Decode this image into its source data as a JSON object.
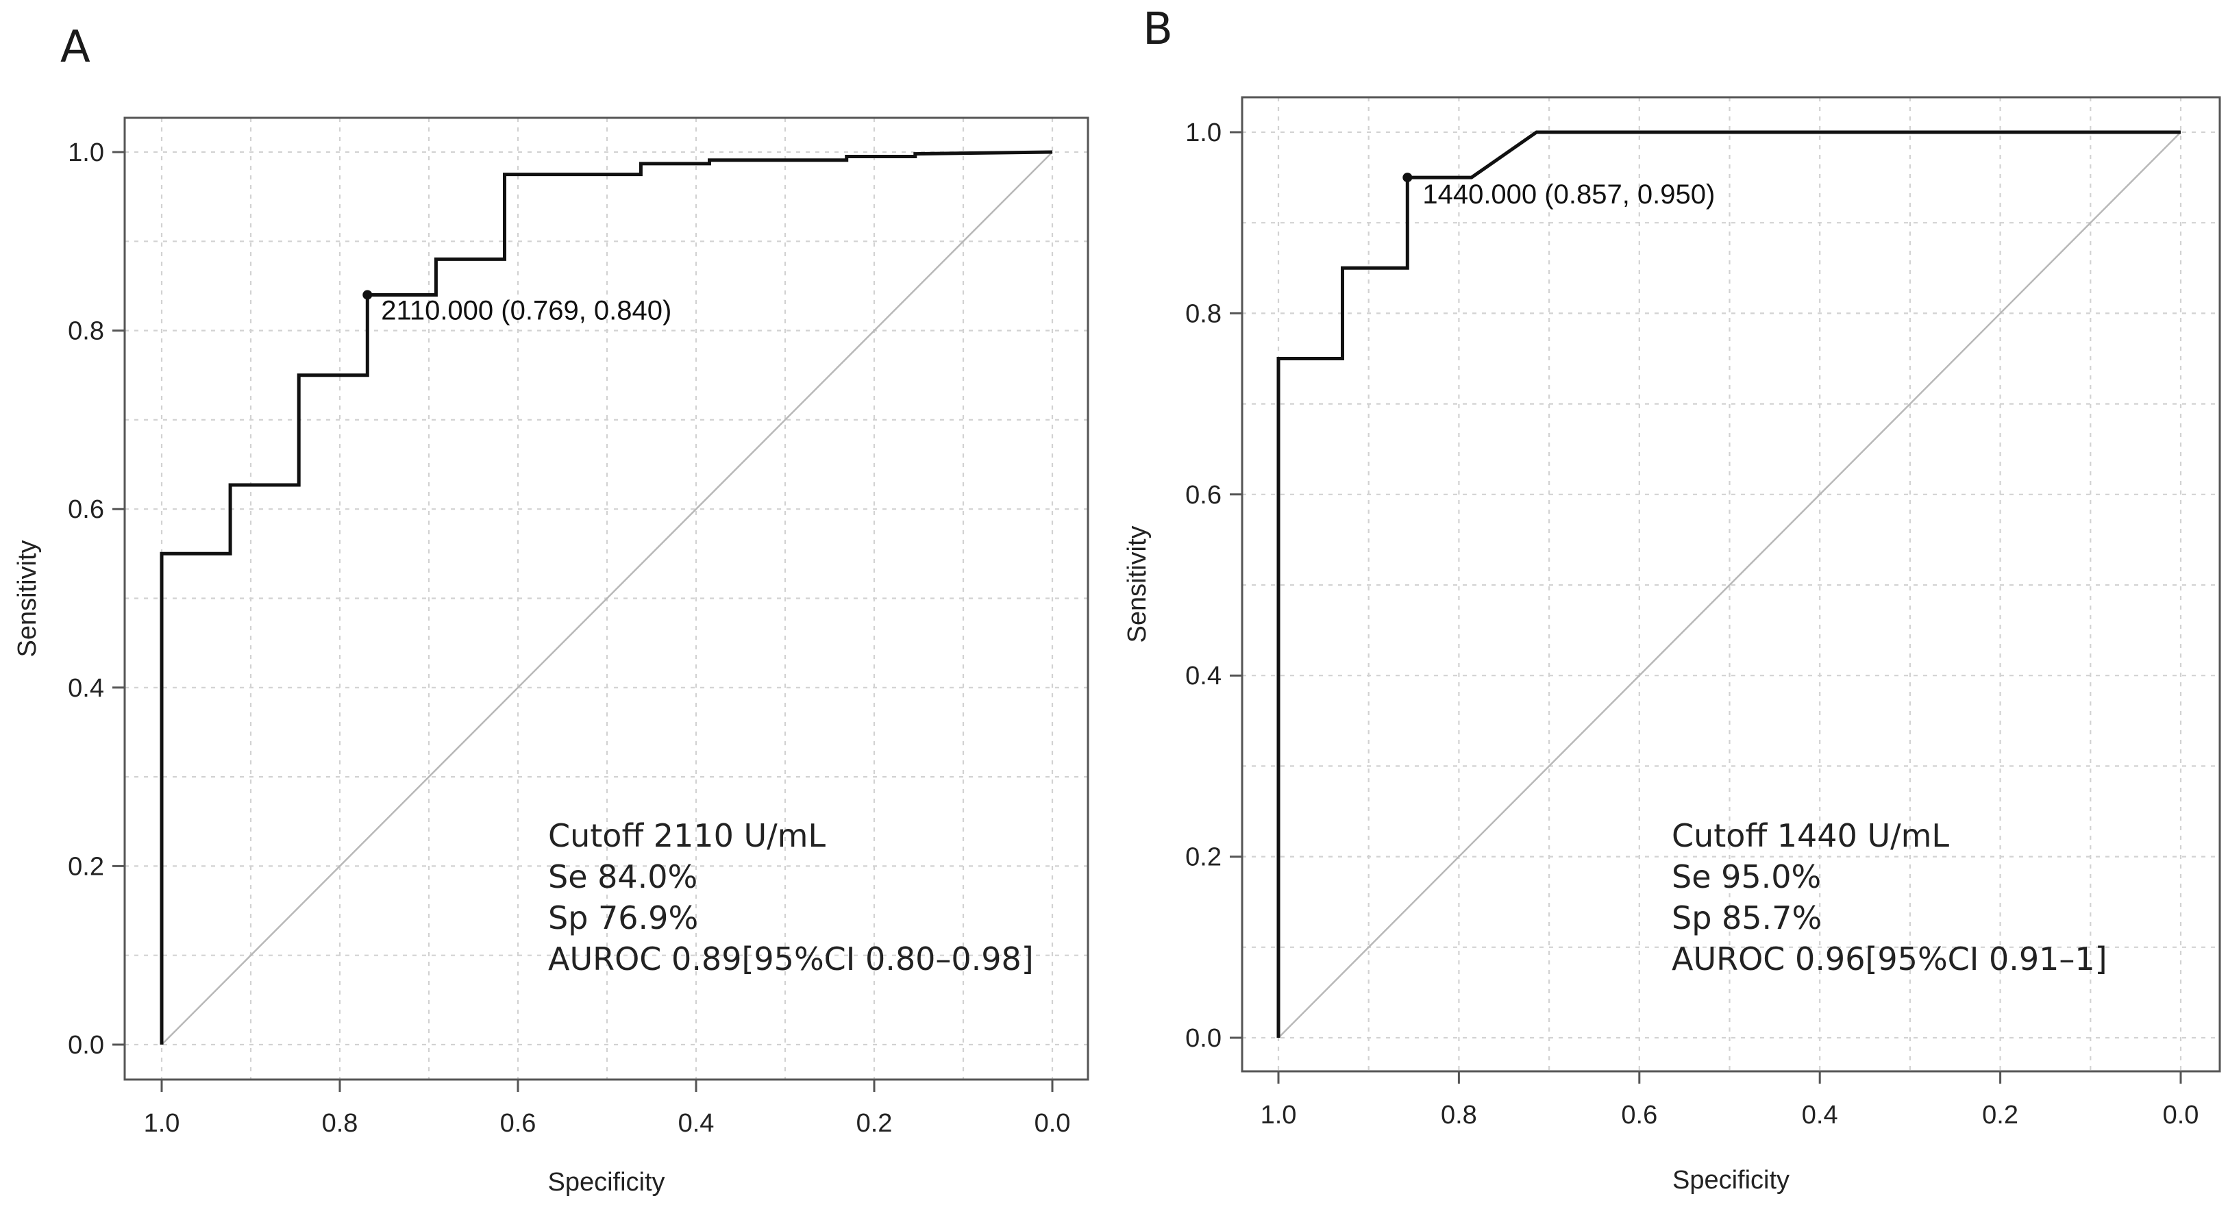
{
  "chart_data": [
    {
      "type": "line",
      "panel_label": "A",
      "title": "",
      "xlabel": "Specificity",
      "ylabel": "Sensitivity",
      "xlim": [
        1.0,
        0.0
      ],
      "ylim": [
        0.0,
        1.0
      ],
      "x_reversed": true,
      "xticks": [
        1.0,
        0.8,
        0.6,
        0.4,
        0.2,
        0.0
      ],
      "xtick_labels": [
        "1.0",
        "0.8",
        "0.6",
        "0.4",
        "0.2",
        "0.0"
      ],
      "yticks": [
        0.0,
        0.2,
        0.4,
        0.6,
        0.8,
        1.0
      ],
      "ytick_labels": [
        "0.0",
        "0.2",
        "0.4",
        "0.6",
        "0.8",
        "1.0"
      ],
      "grid": true,
      "series": [
        {
          "name": "ROC",
          "points": [
            [
              1.0,
              0.0
            ],
            [
              1.0,
              0.55
            ],
            [
              0.923,
              0.55
            ],
            [
              0.923,
              0.627
            ],
            [
              0.846,
              0.627
            ],
            [
              0.846,
              0.75
            ],
            [
              0.769,
              0.75
            ],
            [
              0.769,
              0.84
            ],
            [
              0.692,
              0.84
            ],
            [
              0.692,
              0.88
            ],
            [
              0.615,
              0.88
            ],
            [
              0.615,
              0.975
            ],
            [
              0.462,
              0.975
            ],
            [
              0.462,
              0.987
            ],
            [
              0.385,
              0.987
            ],
            [
              0.385,
              0.991
            ],
            [
              0.231,
              0.991
            ],
            [
              0.231,
              0.995
            ],
            [
              0.154,
              0.995
            ],
            [
              0.154,
              0.998
            ],
            [
              0.0,
              1.0
            ]
          ]
        }
      ],
      "reference_line": [
        [
          1.0,
          0.0
        ],
        [
          0.0,
          1.0
        ]
      ],
      "cutoff_point": {
        "x": 0.769,
        "y": 0.84,
        "label": "2110.000 (0.769, 0.840)"
      },
      "annotations": [
        "Cutoff 2110 U/mL",
        "Se 84.0%",
        "Sp 76.9%",
        "AUROC 0.89[95%CI 0.80–0.98]"
      ]
    },
    {
      "type": "line",
      "panel_label": "B",
      "title": "",
      "xlabel": "Specificity",
      "ylabel": "Sensitivity",
      "xlim": [
        1.0,
        0.0
      ],
      "ylim": [
        0.0,
        1.0
      ],
      "x_reversed": true,
      "xticks": [
        1.0,
        0.8,
        0.6,
        0.4,
        0.2,
        0.0
      ],
      "xtick_labels": [
        "1.0",
        "0.8",
        "0.6",
        "0.4",
        "0.2",
        "0.0"
      ],
      "yticks": [
        0.0,
        0.2,
        0.4,
        0.6,
        0.8,
        1.0
      ],
      "ytick_labels": [
        "0.0",
        "0.2",
        "0.4",
        "0.6",
        "0.8",
        "1.0"
      ],
      "grid": true,
      "series": [
        {
          "name": "ROC",
          "points": [
            [
              1.0,
              0.0
            ],
            [
              1.0,
              0.75
            ],
            [
              0.929,
              0.75
            ],
            [
              0.929,
              0.85
            ],
            [
              0.857,
              0.85
            ],
            [
              0.857,
              0.95
            ],
            [
              0.786,
              0.95
            ],
            [
              0.714,
              1.0
            ],
            [
              0.0,
              1.0
            ]
          ]
        }
      ],
      "reference_line": [
        [
          1.0,
          0.0
        ],
        [
          0.0,
          1.0
        ]
      ],
      "cutoff_point": {
        "x": 0.857,
        "y": 0.95,
        "label": "1440.000 (0.857, 0.950)"
      },
      "annotations": [
        "Cutoff 1440 U/mL",
        "Se 95.0%",
        "Sp 85.7%",
        "AUROC 0.96[95%CI 0.91–1]"
      ]
    }
  ]
}
